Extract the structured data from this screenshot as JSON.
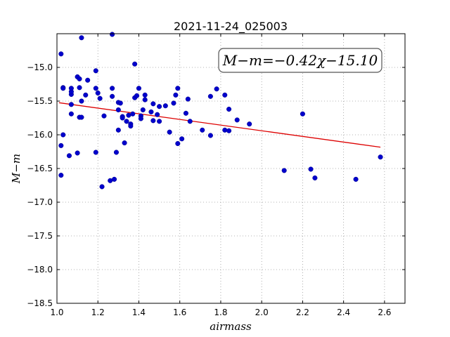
{
  "chart_data": {
    "type": "scatter",
    "title": "2021-11-24_025003",
    "xlabel": "airmass",
    "ylabel": "M−m",
    "xlim": [
      1.0,
      2.7
    ],
    "ylim": [
      -18.5,
      -14.5
    ],
    "x_ticks": [
      "1.0",
      "1.2",
      "1.4",
      "1.6",
      "1.8",
      "2.0",
      "2.2",
      "2.4",
      "2.6"
    ],
    "y_ticks": [
      "−15.0",
      "−15.5",
      "−16.0",
      "−16.5",
      "−17.0",
      "−17.5",
      "−18.0",
      "−18.5"
    ],
    "grid": true,
    "annotation": "M−m=−0.42χ−15.10",
    "point_color": "#0000cc",
    "fit_color": "#dd0000",
    "fit": {
      "slope": -0.42,
      "intercept": -15.1,
      "x_range": [
        1.01,
        2.58
      ]
    },
    "points": [
      [
        1.02,
        -14.8
      ],
      [
        1.02,
        -16.16
      ],
      [
        1.02,
        -16.6
      ],
      [
        1.03,
        -15.3
      ],
      [
        1.03,
        -15.31
      ],
      [
        1.03,
        -16.0
      ],
      [
        1.06,
        -16.31
      ],
      [
        1.07,
        -15.55
      ],
      [
        1.07,
        -15.69
      ],
      [
        1.07,
        -15.4
      ],
      [
        1.07,
        -15.36
      ],
      [
        1.07,
        -15.31
      ],
      [
        1.1,
        -15.14
      ],
      [
        1.1,
        -16.27
      ],
      [
        1.11,
        -15.17
      ],
      [
        1.11,
        -15.3
      ],
      [
        1.11,
        -15.74
      ],
      [
        1.12,
        -15.74
      ],
      [
        1.12,
        -15.5
      ],
      [
        1.12,
        -14.56
      ],
      [
        1.14,
        -15.41
      ],
      [
        1.15,
        -15.19
      ],
      [
        1.19,
        -15.05
      ],
      [
        1.19,
        -15.31
      ],
      [
        1.19,
        -16.26
      ],
      [
        1.2,
        -15.38
      ],
      [
        1.21,
        -15.46
      ],
      [
        1.22,
        -16.77
      ],
      [
        1.23,
        -15.72
      ],
      [
        1.26,
        -16.68
      ],
      [
        1.27,
        -15.31
      ],
      [
        1.27,
        -15.43
      ],
      [
        1.27,
        -14.51
      ],
      [
        1.28,
        -16.66
      ],
      [
        1.29,
        -16.26
      ],
      [
        1.3,
        -15.93
      ],
      [
        1.3,
        -15.63
      ],
      [
        1.3,
        -15.52
      ],
      [
        1.31,
        -15.53
      ],
      [
        1.32,
        -15.73
      ],
      [
        1.32,
        -15.75
      ],
      [
        1.33,
        -16.12
      ],
      [
        1.34,
        -15.8
      ],
      [
        1.35,
        -15.71
      ],
      [
        1.36,
        -15.84
      ],
      [
        1.36,
        -15.87
      ],
      [
        1.37,
        -15.69
      ],
      [
        1.38,
        -14.95
      ],
      [
        1.38,
        -15.45
      ],
      [
        1.39,
        -15.42
      ],
      [
        1.4,
        -15.31
      ],
      [
        1.41,
        -15.72
      ],
      [
        1.41,
        -15.76
      ],
      [
        1.42,
        -15.63
      ],
      [
        1.43,
        -15.41
      ],
      [
        1.43,
        -15.48
      ],
      [
        1.46,
        -15.66
      ],
      [
        1.47,
        -15.79
      ],
      [
        1.47,
        -15.54
      ],
      [
        1.49,
        -15.7
      ],
      [
        1.5,
        -15.58
      ],
      [
        1.5,
        -15.8
      ],
      [
        1.53,
        -15.57
      ],
      [
        1.55,
        -15.96
      ],
      [
        1.57,
        -15.53
      ],
      [
        1.58,
        -15.41
      ],
      [
        1.59,
        -16.13
      ],
      [
        1.59,
        -15.31
      ],
      [
        1.61,
        -16.06
      ],
      [
        1.63,
        -15.68
      ],
      [
        1.64,
        -15.47
      ],
      [
        1.65,
        -15.8
      ],
      [
        1.71,
        -15.93
      ],
      [
        1.75,
        -15.43
      ],
      [
        1.75,
        -16.01
      ],
      [
        1.78,
        -15.32
      ],
      [
        1.82,
        -15.41
      ],
      [
        1.82,
        -15.93
      ],
      [
        1.84,
        -15.94
      ],
      [
        1.84,
        -15.62
      ],
      [
        1.88,
        -15.78
      ],
      [
        1.94,
        -15.84
      ],
      [
        2.11,
        -16.53
      ],
      [
        2.2,
        -15.69
      ],
      [
        2.24,
        -16.51
      ],
      [
        2.26,
        -16.64
      ],
      [
        2.46,
        -16.66
      ],
      [
        2.58,
        -16.33
      ]
    ]
  }
}
